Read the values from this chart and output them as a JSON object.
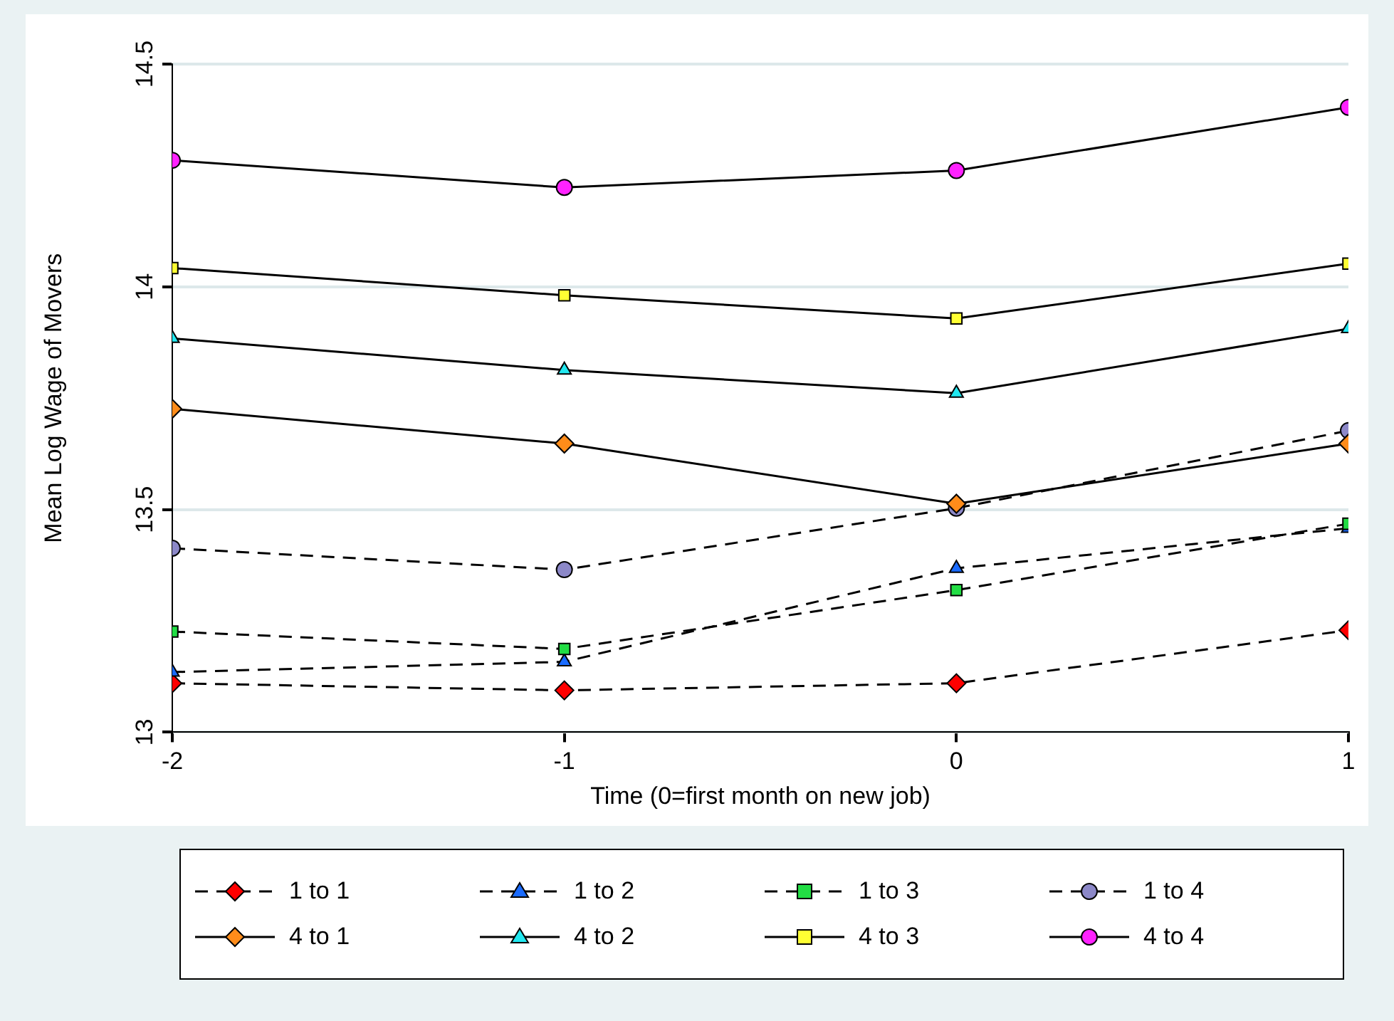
{
  "chart_data": {
    "type": "line",
    "xlabel": "Time (0=first month on new job)",
    "ylabel": "Mean Log Wage of Movers",
    "x": [
      -2,
      -1,
      0,
      1
    ],
    "xlim": [
      -2,
      1
    ],
    "xticks": [
      -2,
      -1,
      0,
      1
    ],
    "ylim": [
      13,
      14.5
    ],
    "yticks": [
      13,
      13.5,
      14,
      14.5
    ],
    "grid": "y",
    "legend": "bottom",
    "series": [
      {
        "name": "1 to 1",
        "color": "#000000",
        "colors": [
          "#ff0000",
          "#ff0000",
          "#ff0000",
          "#ff0000"
        ],
        "marker": "diamond",
        "line_style": "dashed",
        "values": [
          13.11,
          13.094,
          13.11,
          13.229
        ]
      },
      {
        "name": "1 to 2",
        "color": "#000000",
        "colors": [
          "#1a6bff",
          "#1a6bff",
          "#1a6bff",
          "#1a6bff"
        ],
        "marker": "triangle",
        "line_style": "dashed",
        "values": [
          13.135,
          13.158,
          13.368,
          13.458
        ]
      },
      {
        "name": "1 to 3",
        "color": "#000000",
        "colors": [
          "#22dd44",
          "#22dd44",
          "#22dd44",
          "#22dd44"
        ],
        "marker": "square",
        "line_style": "dashed",
        "values": [
          13.226,
          13.187,
          13.319,
          13.468
        ]
      },
      {
        "name": "1 to 4",
        "color": "#000000",
        "colors": [
          "#8c88c8",
          "#8c88c8",
          "#8c88c8",
          "#8c88c8"
        ],
        "marker": "circle",
        "line_style": "dashed",
        "values": [
          13.413,
          13.365,
          13.503,
          13.677
        ]
      },
      {
        "name": "4 to 1",
        "color": "#000000",
        "colors": [
          "#ff8c1a",
          "#ff8c1a",
          "#ff8c1a",
          "#ff8c1a"
        ],
        "marker": "diamond",
        "line_style": "solid",
        "values": [
          13.726,
          13.648,
          13.513,
          13.648
        ]
      },
      {
        "name": "4 to 2",
        "color": "#000000",
        "colors": [
          "#22e8f0",
          "#22e8f0",
          "#22e8f0",
          "#22e8f0"
        ],
        "marker": "triangle",
        "line_style": "solid",
        "values": [
          13.884,
          13.813,
          13.761,
          13.906
        ]
      },
      {
        "name": "4 to 3",
        "color": "#000000",
        "colors": [
          "#ffff33",
          "#ffff33",
          "#ffff33",
          "#ffff33"
        ],
        "marker": "square",
        "line_style": "solid",
        "values": [
          14.042,
          13.981,
          13.929,
          14.052
        ]
      },
      {
        "name": "4 to 4",
        "color": "#000000",
        "colors": [
          "#ff22ff",
          "#ff22ff",
          "#ff22ff",
          "#ff22ff"
        ],
        "marker": "circle",
        "line_style": "solid",
        "values": [
          14.284,
          14.223,
          14.261,
          14.403
        ]
      }
    ]
  }
}
